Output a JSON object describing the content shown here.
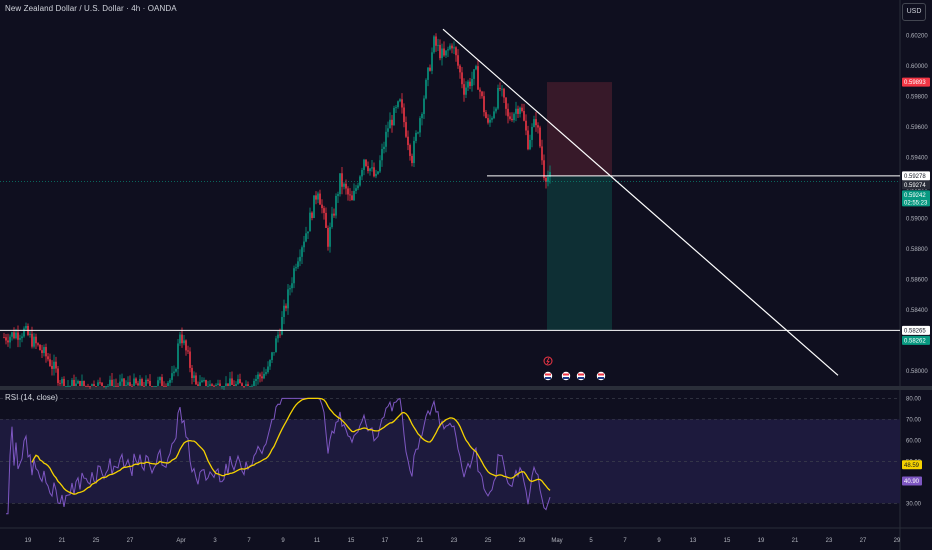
{
  "header": {
    "title": "New Zealand Dollar / U.S. Dollar · 4h · OANDA",
    "currency_button": "USD"
  },
  "rsi_panel": {
    "title": "RSI (14, close)",
    "ticks": [
      "80.00",
      "70.00",
      "60.00",
      "50.00",
      "30.00"
    ],
    "tick_values": [
      80,
      70,
      60,
      50,
      30
    ],
    "ma_badge": "48.59",
    "rsi_badge": "40.90",
    "colors": {
      "rsi": "#7e57c2",
      "ma": "#f5d200",
      "band": "#1d1a3d"
    }
  },
  "chart_data": {
    "type": "candlestick",
    "symbol": "NZDUSD",
    "interval": "4h",
    "ylim": [
      0.579,
      0.603
    ],
    "price_ticks": [
      "0.60200",
      "0.60000",
      "0.59800",
      "0.59600",
      "0.59400",
      "0.59200",
      "0.59000",
      "0.58800",
      "0.58600",
      "0.58400",
      "0.58200",
      "0.58000"
    ],
    "price_tick_values": [
      0.602,
      0.6,
      0.598,
      0.596,
      0.594,
      0.592,
      0.59,
      0.588,
      0.586,
      0.584,
      0.582,
      0.58
    ],
    "x_ticks": [
      "19",
      "21",
      "25",
      "27",
      "Apr",
      "3",
      "7",
      "9",
      "11",
      "15",
      "17",
      "21",
      "23",
      "25",
      "29",
      "May",
      "5",
      "7",
      "9",
      "13",
      "15",
      "19",
      "21",
      "23",
      "27",
      "29"
    ],
    "price_labels": [
      {
        "text": "0.59893",
        "value": 0.59893,
        "color": "#f23645"
      },
      {
        "text": "0.59278",
        "value": 0.59278,
        "color": "#ffffff"
      },
      {
        "text": "0.59274",
        "value": 0.59274,
        "color": "#2a2e39"
      },
      {
        "text": "0.59242",
        "value": 0.59242,
        "color": "#089981"
      },
      {
        "text": "0.58265",
        "value": 0.58265,
        "color": "#ffffff"
      },
      {
        "text": "0.58262",
        "value": 0.58262,
        "color": "#089981"
      }
    ],
    "countdown": "02:55:23",
    "horizontal_levels": [
      0.58265,
      0.59278
    ],
    "trendline": {
      "from": 0.6024,
      "to": 0.5797
    },
    "position": {
      "stop": 0.59893,
      "entry": 0.59278,
      "target": 0.58265
    },
    "colors": {
      "up": "#089981",
      "down": "#f23645",
      "stop_zone": "#3a1a2a",
      "target_zone": "#0f3236"
    }
  }
}
